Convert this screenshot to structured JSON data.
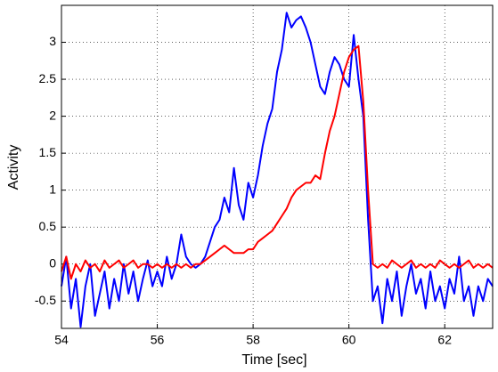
{
  "chart_data": {
    "type": "line",
    "xlabel": "Time [sec]",
    "ylabel": "Activity",
    "x": [
      54.0,
      54.1,
      54.2,
      54.3,
      54.4,
      54.5,
      54.6,
      54.7,
      54.8,
      54.9,
      55.0,
      55.1,
      55.2,
      55.3,
      55.4,
      55.5,
      55.6,
      55.7,
      55.8,
      55.9,
      56.0,
      56.1,
      56.2,
      56.3,
      56.4,
      56.5,
      56.6,
      56.7,
      56.8,
      56.9,
      57.0,
      57.1,
      57.2,
      57.3,
      57.4,
      57.5,
      57.6,
      57.7,
      57.8,
      57.9,
      58.0,
      58.1,
      58.2,
      58.3,
      58.4,
      58.5,
      58.6,
      58.7,
      58.8,
      58.9,
      59.0,
      59.1,
      59.2,
      59.3,
      59.4,
      59.5,
      59.6,
      59.7,
      59.8,
      59.9,
      60.0,
      60.1,
      60.2,
      60.3,
      60.4,
      60.5,
      60.6,
      60.7,
      60.8,
      60.9,
      61.0,
      61.1,
      61.2,
      61.3,
      61.4,
      61.5,
      61.6,
      61.7,
      61.8,
      61.9,
      62.0,
      62.1,
      62.2,
      62.3,
      62.4,
      62.5,
      62.6,
      62.7,
      62.8,
      62.9,
      63.0
    ],
    "series": [
      {
        "color": "#0000ff",
        "values": [
          -0.3,
          0.1,
          -0.6,
          -0.2,
          -0.85,
          -0.3,
          0.0,
          -0.7,
          -0.4,
          -0.1,
          -0.6,
          -0.2,
          -0.5,
          0.0,
          -0.4,
          -0.1,
          -0.5,
          -0.2,
          0.05,
          -0.3,
          -0.1,
          -0.3,
          0.1,
          -0.2,
          0.0,
          0.4,
          0.1,
          0.0,
          -0.05,
          0.0,
          0.1,
          0.3,
          0.5,
          0.6,
          0.9,
          0.7,
          1.3,
          0.8,
          0.6,
          1.1,
          0.9,
          1.2,
          1.6,
          1.9,
          2.1,
          2.6,
          2.9,
          3.4,
          3.2,
          3.3,
          3.35,
          3.2,
          3.0,
          2.7,
          2.4,
          2.3,
          2.6,
          2.8,
          2.7,
          2.5,
          2.4,
          3.1,
          2.5,
          2.0,
          0.6,
          -0.5,
          -0.3,
          -0.8,
          -0.2,
          -0.5,
          -0.1,
          -0.7,
          -0.3,
          0.0,
          -0.4,
          -0.2,
          -0.6,
          -0.1,
          -0.5,
          -0.3,
          -0.6,
          -0.2,
          -0.4,
          0.1,
          -0.5,
          -0.3,
          -0.7,
          -0.3,
          -0.5,
          -0.2,
          -0.3
        ]
      },
      {
        "color": "#ff0000",
        "values": [
          -0.1,
          0.1,
          -0.2,
          0.0,
          -0.1,
          0.05,
          -0.05,
          0.0,
          -0.1,
          0.05,
          -0.05,
          0.0,
          0.05,
          -0.05,
          0.0,
          0.05,
          -0.05,
          0.0,
          0.0,
          -0.05,
          0.0,
          -0.05,
          0.0,
          -0.05,
          0.0,
          -0.05,
          0.0,
          -0.05,
          0.0,
          0.0,
          0.05,
          0.1,
          0.15,
          0.2,
          0.25,
          0.2,
          0.15,
          0.15,
          0.15,
          0.2,
          0.2,
          0.3,
          0.35,
          0.4,
          0.45,
          0.55,
          0.65,
          0.75,
          0.9,
          1.0,
          1.05,
          1.1,
          1.1,
          1.2,
          1.15,
          1.5,
          1.8,
          2.0,
          2.3,
          2.6,
          2.8,
          2.9,
          2.95,
          2.2,
          1.0,
          0.0,
          -0.05,
          0.0,
          -0.05,
          0.05,
          0.0,
          -0.05,
          0.0,
          0.05,
          -0.05,
          0.0,
          -0.05,
          0.0,
          -0.05,
          0.05,
          0.0,
          -0.05,
          0.0,
          -0.05,
          0.0,
          0.05,
          -0.05,
          0.0,
          -0.05,
          0.0,
          -0.05
        ]
      }
    ],
    "xlim": [
      54,
      63
    ],
    "xticks": [
      54,
      56,
      58,
      60,
      62
    ],
    "ylim": [
      -0.87,
      3.5
    ],
    "yticks": [
      -0.5,
      0,
      0.5,
      1,
      1.5,
      2,
      2.5,
      3
    ],
    "grid": true
  }
}
